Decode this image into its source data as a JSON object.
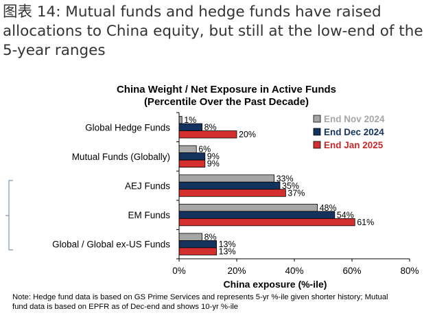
{
  "figure": {
    "heading_lines": [
      "图表 14: Mutual funds and hedge funds have raised",
      "allocations to China equity, but still at the low-end of the",
      "5-year ranges"
    ],
    "note_lines": [
      "Note: Hedge fund data is based on GS Prime Services and represents 5-yr %-ile given shorter history; Mutual",
      "fund data is based on EPFR as of Dec-end and shows 10-yr %-ile"
    ]
  },
  "chart_data": {
    "type": "bar",
    "orientation": "horizontal",
    "title_lines": [
      "China Weight / Net Exposure in Active Funds",
      "(Percentile Over the Past Decade)"
    ],
    "xlabel": "China exposure  (%-ile)",
    "ylabel": "",
    "xlim": [
      0,
      80
    ],
    "xticks": [
      0,
      20,
      40,
      60,
      80
    ],
    "xtick_labels": [
      "0%",
      "20%",
      "40%",
      "60%",
      "80%"
    ],
    "grid": false,
    "legend_position": "top-right",
    "categories": [
      "Global Hedge Funds",
      "Mutual Funds (Globally)",
      "AEJ Funds",
      "EM Funds",
      "Global / Global ex-US Funds"
    ],
    "series": [
      {
        "name": "End Nov 2024",
        "color": "#a6a6a6",
        "text_color": "#a6a6a6",
        "values": [
          1,
          6,
          33,
          48,
          8
        ],
        "labels": [
          "1%",
          "6%",
          "33%",
          "48%",
          "8%"
        ]
      },
      {
        "name": "End Dec 2024",
        "color": "#13325e",
        "text_color": "#13325e",
        "values": [
          8,
          9,
          35,
          54,
          13
        ],
        "labels": [
          "8%",
          "9%",
          "35%",
          "54%",
          "13%"
        ]
      },
      {
        "name": "End Jan 2025",
        "color": "#d32f2f",
        "text_color": "#c62828",
        "values": [
          20,
          9,
          37,
          61,
          13
        ],
        "labels": [
          "20%",
          "9%",
          "37%",
          "61%",
          "13%"
        ]
      }
    ]
  }
}
